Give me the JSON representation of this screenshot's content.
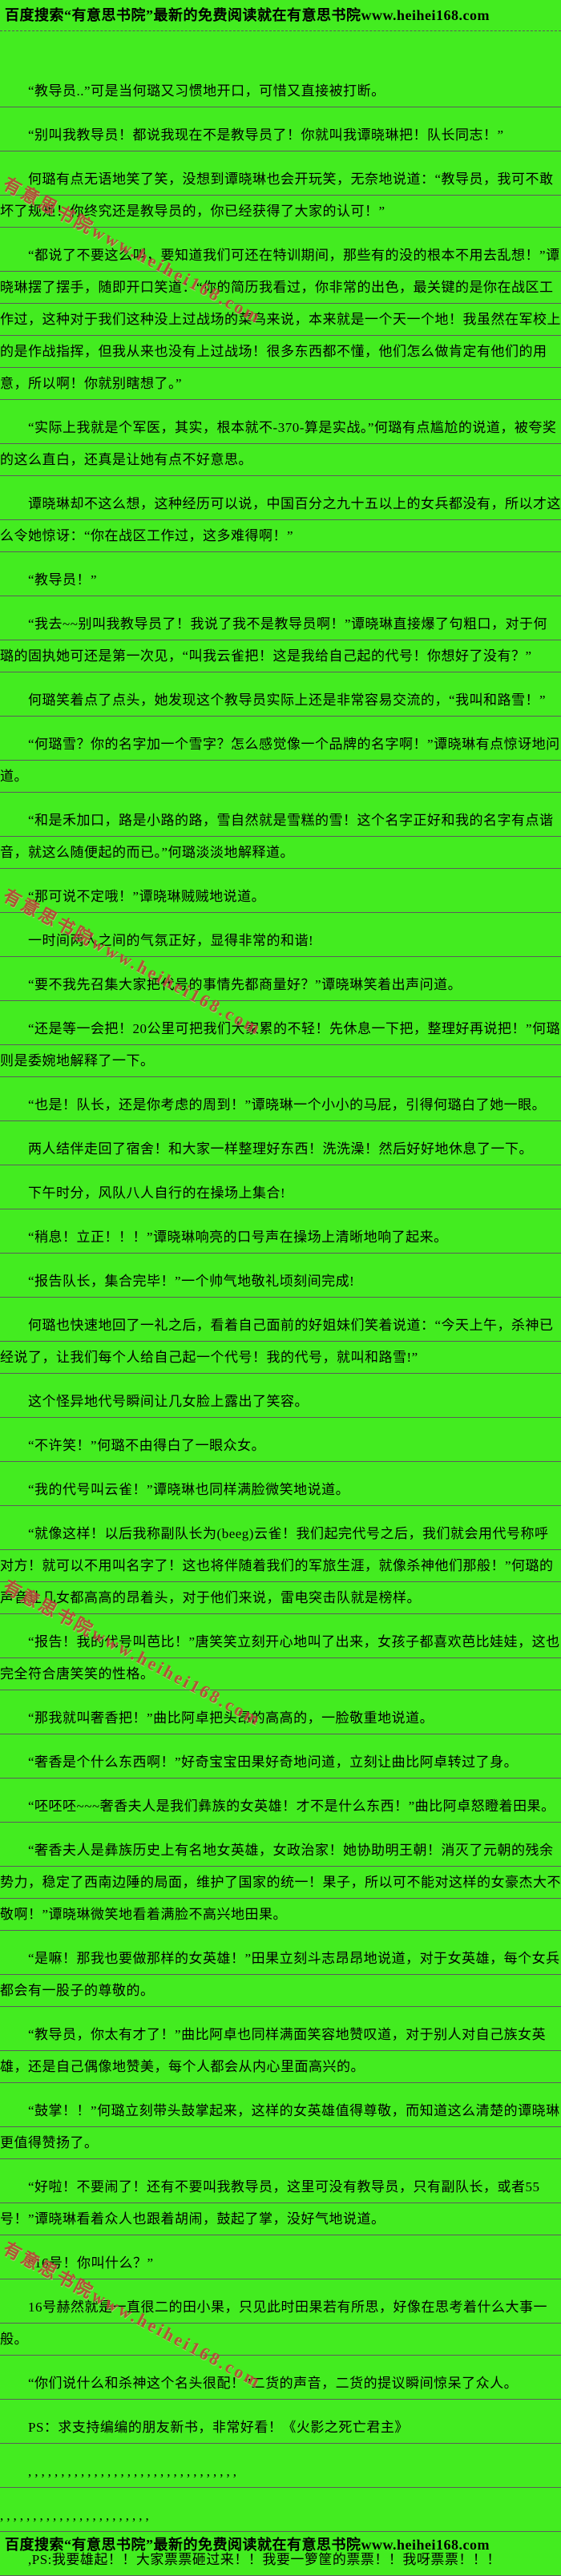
{
  "page": {
    "background_color": "#43ec20",
    "rule_line_color": "#5c5c5c"
  },
  "header": {
    "text": "百度搜索“有意思书院”最新的免费阅读就在有意思书院www.heihei168.com"
  },
  "footer": {
    "text": "百度搜索“有意思书院”最新的免费阅读就在有意思书院www.heihei168.com"
  },
  "watermark": {
    "text": "有意思书院www.heihei168.com",
    "color": "#c23a3a"
  },
  "content": {
    "paragraphs": [
      {
        "text": "“教导员..”可是当何璐又习惯地开口，可惜又直接被打断。"
      },
      {
        "text": "“别叫我教导员！都说我现在不是教导员了！你就叫我谭晓琳把！队长同志！”"
      },
      {
        "text": "何璐有点无语地笑了笑，没想到谭晓琳也会开玩笑，无奈地说道：“教导员，我可不敢坏了规矩！你终究还是教导员的，你已经获得了大家的认可！”"
      },
      {
        "text": "“都说了不要这么叫，要知道我们可还在特训期间，那些有的没的根本不用去乱想！”谭晓琳摆了摆手，随即开口笑道：“你的简历我看过，你非常的出色，最关键的是你在战区工作过，这种对于我们这种没上过战场的菜鸟来说，本来就是一个天一个地！我虽然在军校上的是作战指挥，但我从来也没有上过战场！很多东西都不懂，他们怎么做肯定有他们的用意，所以啊！你就别瞎想了。”"
      },
      {
        "text": "“实际上我就是个军医，其实，根本就不-370-算是实战。”何璐有点尴尬的说道，被夸奖的这么直白，还真是让她有点不好意思。"
      },
      {
        "text": "谭晓琳却不这么想，这种经历可以说，中国百分之九十五以上的女兵都没有，所以才这么令她惊讶：“你在战区工作过，这多难得啊！”"
      },
      {
        "text": "“教导员！”"
      },
      {
        "text": "“我去~~别叫我教导员了！我说了我不是教导员啊！”谭晓琳直接爆了句粗口，对于何璐的固执她可还是第一次见，“叫我云雀把！这是我给自己起的代号！你想好了没有？”"
      },
      {
        "text": "何璐笑着点了点头，她发现这个教导员实际上还是非常容易交流的，“我叫和路雪！”"
      },
      {
        "text": "“何璐雪？你的名字加一个雪字？怎么感觉像一个品牌的名字啊！”谭晓琳有点惊讶地问道。"
      },
      {
        "text": "“和是禾加口，路是小路的路，雪自然就是雪糕的雪！这个名字正好和我的名字有点谐音，就这么随便起的而已。”何璐淡淡地解释道。"
      },
      {
        "text": "“那可说不定哦！”谭晓琳贼贼地说道。"
      },
      {
        "text": "一时间两人之间的气氛正好，显得非常的和谐!"
      },
      {
        "text": "“要不我先召集大家把代号的事情先都商量好？”谭晓琳笑着出声问道。"
      },
      {
        "text": "“还是等一会把！20公里可把我们大家累的不轻！先休息一下把，整理好再说把！”何璐则是委婉地解释了一下。"
      },
      {
        "text": "“也是！队长，还是你考虑的周到！”谭晓琳一个小小的马屁，引得何璐白了她一眼。"
      },
      {
        "text": "两人结伴走回了宿舍！和大家一样整理好东西！洗洗澡！然后好好地休息了一下。"
      },
      {
        "text": "下午时分，风队八人自行的在操场上集合!"
      },
      {
        "text": "“稍息！立正！！！”谭晓琳响亮的口号声在操场上清晰地响了起来。"
      },
      {
        "text": "“报告队长，集合完毕！”一个帅气地敬礼顷刻间完成!"
      },
      {
        "text": "何璐也快速地回了一礼之后，看着自己面前的好姐妹们笑着说道：“今天上午，杀神已经说了，让我们每个人给自己起一个代号！我的代号，就叫和路雪!”"
      },
      {
        "text": "这个怪异地代号瞬间让几女脸上露出了笑容。"
      },
      {
        "text": "“不许笑！”何璐不由得白了一眼众女。"
      },
      {
        "text": "“我的代号叫云雀！”谭晓琳也同样满脸微笑地说道。"
      },
      {
        "text": "“就像这样！以后我称副队长为(beeg)云雀！我们起完代号之后，我们就会用代号称呼对方！就可以不用叫名字了！这也将伴随着我们的军旅生涯，就像杀神他们那般！”何璐的声音让几女都高高的昂着头，对于他们来说，雷电突击队就是榜样。"
      },
      {
        "text": "“报告！我的代号叫芭比！”唐笑笑立刻开心地叫了出来，女孩子都喜欢芭比娃娃，这也完全符合唐笑笑的性格。"
      },
      {
        "text": "“那我就叫奢香把！”曲比阿卓把头昂的高高的，一脸敬重地说道。"
      },
      {
        "text": "“奢香是个什么东西啊！”好奇宝宝田果好奇地问道，立刻让曲比阿卓转过了身。"
      },
      {
        "text": "“呸呸呸~~~奢香夫人是我们彝族的女英雄！才不是什么东西！”曲比阿卓怒瞪着田果。"
      },
      {
        "text": "“奢香夫人是彝族历史上有名地女英雄，女政治家！她协助明王朝！消灭了元朝的残余势力，稳定了西南边陲的局面，维护了国家的统一！果子，所以可不能对这样的女豪杰大不敬啊！”谭晓琳微笑地看着满脸不高兴地田果。"
      },
      {
        "text": "“是嘛！那我也要做那样的女英雄！”田果立刻斗志昂昂地说道，对于女英雄，每个女兵都会有一股子的尊敬的。"
      },
      {
        "text": "“教导员，你太有才了！”曲比阿卓也同样满面笑容地赞叹道，对于别人对自己族女英雄，还是自己偶像地赞美，每个人都会从内心里面高兴的。"
      },
      {
        "text": "“鼓掌！！”何璐立刻带头鼓掌起来，这样的女英雄值得尊敬，而知道这么清楚的谭晓琳更值得赞扬了。"
      },
      {
        "text": "“好啦！不要闹了！还有不要叫我教导员，这里可没有教导员，只有副队长，或者55号！”谭晓琳看着众人也跟着胡闹，鼓起了掌，没好气地说道。"
      },
      {
        "text": "“16号！你叫什么？”"
      },
      {
        "text": "16号赫然就是一直很二的田小果，只见此时田果若有所思，好像在思考着什么大事一般。"
      },
      {
        "text": "“你们说什么和杀神这个名头很配！”二货的声音，二货的提议瞬间惊呆了众人。"
      },
      {
        "text": "PS：求支持编编的朋友新书，非常好看！《火影之死亡君主》"
      },
      {
        "text": ",,,,,,,,,,,,,,,,,,,,,,,,,,,,,,,,",
        "dots": true
      },
      {
        "text": ",,,,,,,,,,,,,,,,,,,,,,,",
        "dots": true,
        "noIndent": true
      },
      {
        "text": ",PS:我要雄起！！大家票票砸过来！！我要一箩筐的票票！！我呀票票！！！"
      }
    ]
  }
}
